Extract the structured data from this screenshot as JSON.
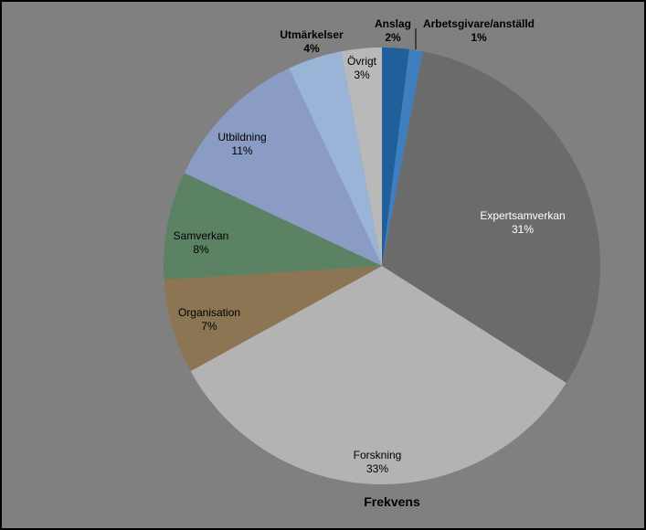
{
  "chart_data": {
    "type": "pie",
    "title": "Frekvens",
    "slices": [
      {
        "label": "Anslag",
        "percent_label": "2%",
        "value": 2,
        "color": "#1f5f9a"
      },
      {
        "label": "Arbetsgivare/anställd",
        "percent_label": "1%",
        "value": 1,
        "color": "#3f7fbf"
      },
      {
        "label": "Expertsamverkan",
        "percent_label": "31%",
        "value": 31,
        "color": "#6b6b6b"
      },
      {
        "label": "Forskning",
        "percent_label": "33%",
        "value": 33,
        "color": "#b3b3b3"
      },
      {
        "label": "Organisation",
        "percent_label": "7%",
        "value": 7,
        "color": "#8c7552"
      },
      {
        "label": "Samverkan",
        "percent_label": "8%",
        "value": 8,
        "color": "#5a8263"
      },
      {
        "label": "Utbildning",
        "percent_label": "11%",
        "value": 11,
        "color": "#8a9cc3"
      },
      {
        "label": "Utmärkelser",
        "percent_label": "4%",
        "value": 4,
        "color": "#99b4d6"
      },
      {
        "label": "Övrigt",
        "percent_label": "3%",
        "value": 3,
        "color": "#b9b9b9"
      }
    ],
    "legend": "none"
  }
}
